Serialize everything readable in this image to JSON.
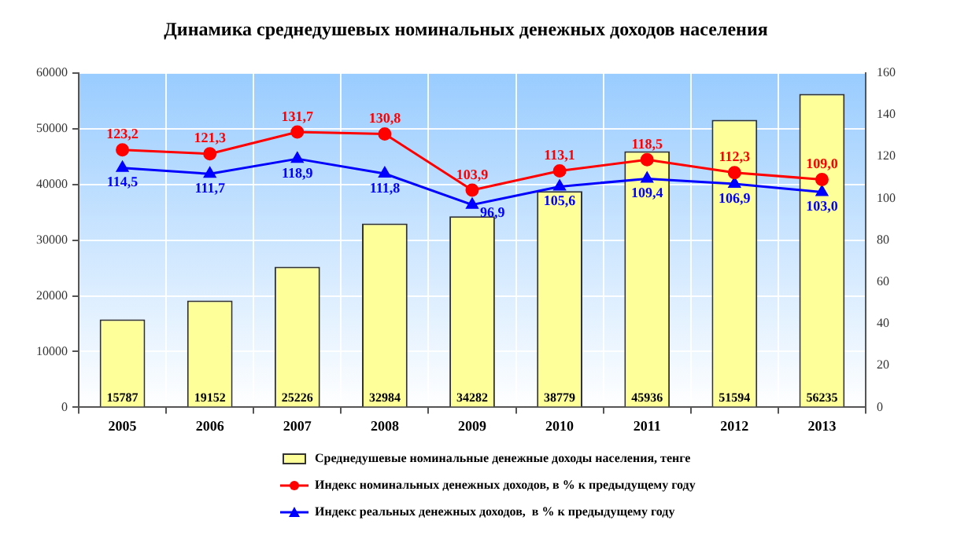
{
  "chart_data": {
    "type": "bar",
    "title": "Динамика среднедушевых номинальных денежных доходов населения",
    "categories": [
      "2005",
      "2006",
      "2007",
      "2008",
      "2009",
      "2010",
      "2011",
      "2012",
      "2013"
    ],
    "series": [
      {
        "name": "Среднедушевые номинальные денежные доходы населения, тенге",
        "color": "#ffff99",
        "values": [
          15787,
          19152,
          25226,
          32984,
          34282,
          38779,
          45936,
          51594,
          56235
        ],
        "value_labels": [
          "15787",
          "19152",
          "25226",
          "32984",
          "34282",
          "38779",
          "45936",
          "51594",
          "56235"
        ]
      },
      {
        "name": "Индекс номинальных денежных доходов, в % к предыдущему году",
        "type": "line",
        "axis": "y2",
        "color": "#ff0000",
        "marker": "circle",
        "values": [
          123.2,
          121.3,
          131.7,
          130.8,
          103.9,
          113.1,
          118.5,
          112.3,
          109.0
        ],
        "value_labels": [
          "123,2",
          "121,3",
          "131,7",
          "130,8",
          "103,9",
          "113,1",
          "118,5",
          "112,3",
          "109,0"
        ]
      },
      {
        "name": "Индекс реальных денежных доходов,  в % к предыдущему году",
        "type": "line",
        "axis": "y2",
        "color": "#0000ff",
        "marker": "triangle",
        "values": [
          114.5,
          111.7,
          118.9,
          111.8,
          96.9,
          105.6,
          109.4,
          106.9,
          103.0
        ],
        "value_labels": [
          "114,5",
          "111,7",
          "118,9",
          "111,8",
          "96,9",
          "105,6",
          "109,4",
          "106,9",
          "103,0"
        ]
      }
    ],
    "ylim": [
      0,
      60000
    ],
    "yticks": [
      0,
      10000,
      20000,
      30000,
      40000,
      50000,
      60000
    ],
    "y2lim": [
      0,
      160
    ],
    "y2ticks": [
      0,
      20,
      40,
      60,
      80,
      100,
      120,
      140,
      160
    ],
    "grid": true,
    "legend": "bottom"
  }
}
